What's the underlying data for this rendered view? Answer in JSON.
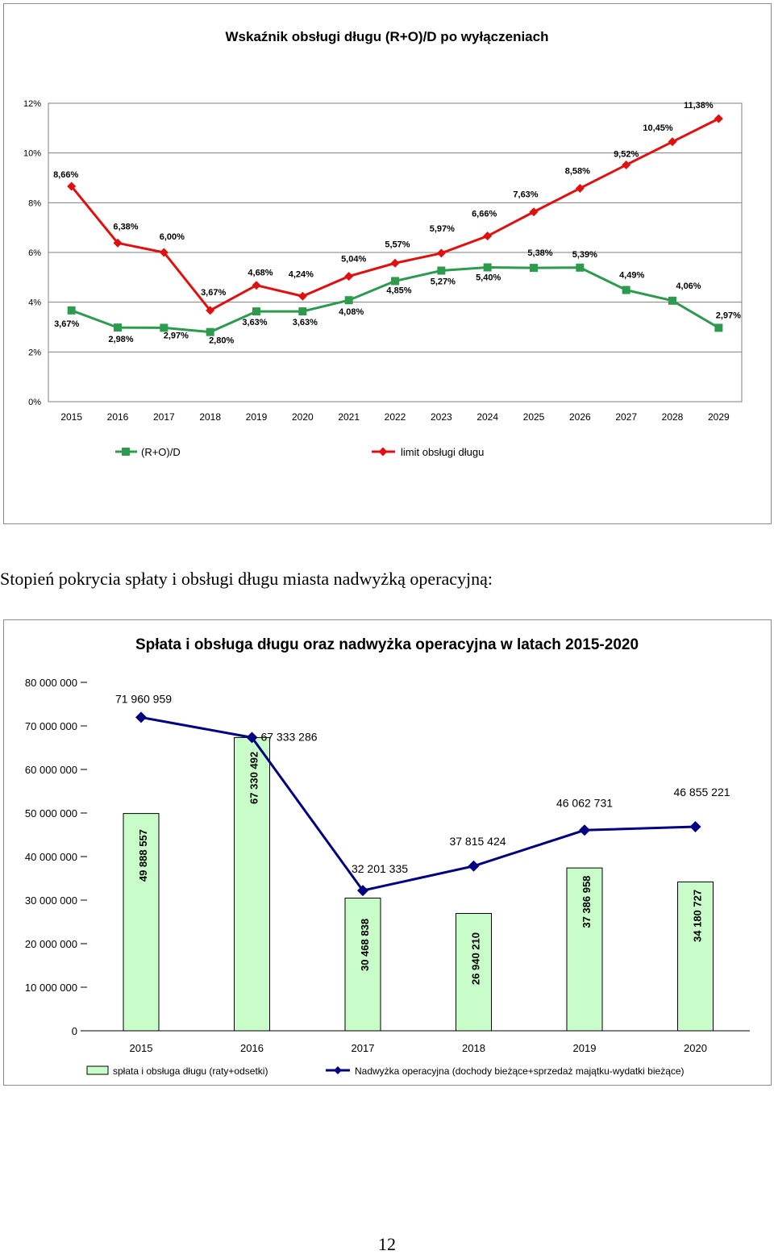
{
  "section_heading": "Stopień pokrycia spłaty i obsługi długu miasta nadwyżką operacyjną:",
  "page_number": "12",
  "colors": {
    "green": "#2e9a4e",
    "red": "#e01010",
    "navy": "#000080",
    "bar_fill": "#c8fcc8"
  },
  "chart_data": [
    {
      "type": "line",
      "title": "Wskaźnik obsługi długu (R+O)/D po wyłączeniach",
      "x": [
        "2015",
        "2016",
        "2017",
        "2018",
        "2019",
        "2020",
        "2021",
        "2022",
        "2023",
        "2024",
        "2025",
        "2026",
        "2027",
        "2028",
        "2029"
      ],
      "y_ticks": [
        "0%",
        "2%",
        "4%",
        "6%",
        "8%",
        "10%",
        "12%"
      ],
      "ylim": [
        0,
        12
      ],
      "grid": true,
      "legend_position": "bottom",
      "series": [
        {
          "name": "(R+O)/D",
          "color": "#2e9a4e",
          "marker": "square",
          "values": [
            3.67,
            2.98,
            2.97,
            2.8,
            3.63,
            3.63,
            4.08,
            4.85,
            5.27,
            5.4,
            5.38,
            5.39,
            4.49,
            4.06,
            2.97
          ],
          "labels": [
            "3,67%",
            "2,98%",
            "2,97%",
            "2,80%",
            "3,63%",
            "3,63%",
            "4,08%",
            "4,85%",
            "5,27%",
            "5,40%",
            "5,38%",
            "5,39%",
            "4,49%",
            "4,06%",
            "2,97%"
          ]
        },
        {
          "name": "limit obsługi długu",
          "color": "#e01010",
          "marker": "diamond",
          "values": [
            8.66,
            6.38,
            6.0,
            3.67,
            4.68,
            4.24,
            5.04,
            5.57,
            5.97,
            6.66,
            7.63,
            8.58,
            9.52,
            10.45,
            11.38
          ],
          "labels": [
            "8,66%",
            "6,38%",
            "6,00%",
            "3,67%",
            "4,68%",
            "4,24%",
            "5,04%",
            "5,57%",
            "5,97%",
            "6,66%",
            "7,63%",
            "8,58%",
            "9,52%",
            "10,45%",
            "11,38%"
          ]
        }
      ]
    },
    {
      "type": "bar",
      "title": "Spłata i obsługa długu oraz nadwyżka operacyjna w latach 2015-2020",
      "categories": [
        "2015",
        "2016",
        "2017",
        "2018",
        "2019",
        "2020"
      ],
      "y_ticks": [
        "0",
        "10 000 000",
        "20 000 000",
        "30 000 000",
        "40 000 000",
        "50 000 000",
        "60 000 000",
        "70 000 000",
        "80 000 000"
      ],
      "ylim": [
        0,
        80000000
      ],
      "legend_position": "bottom",
      "series": [
        {
          "name": "spłata i obsługa długu (raty+odsetki)",
          "kind": "bar",
          "color": "#c8fcc8",
          "values": [
            49888557,
            67330492,
            30468838,
            26940210,
            37386958,
            34180727
          ],
          "labels": [
            "49 888 557",
            "67 330 492",
            "30 468 838",
            "26 940 210",
            "37 386 958",
            "34 180 727"
          ]
        },
        {
          "name": "Nadwyżka operacyjna (dochody bieżące+sprzedaż majątku-wydatki bieżące)",
          "kind": "line",
          "color": "#000080",
          "values": [
            71960959,
            67333286,
            32201335,
            37815424,
            46062731,
            46855221
          ],
          "labels": [
            "71 960 959",
            "67 333 286",
            "32 201 335",
            "37 815 424",
            "46 062 731",
            "46 855 221"
          ]
        }
      ]
    }
  ]
}
